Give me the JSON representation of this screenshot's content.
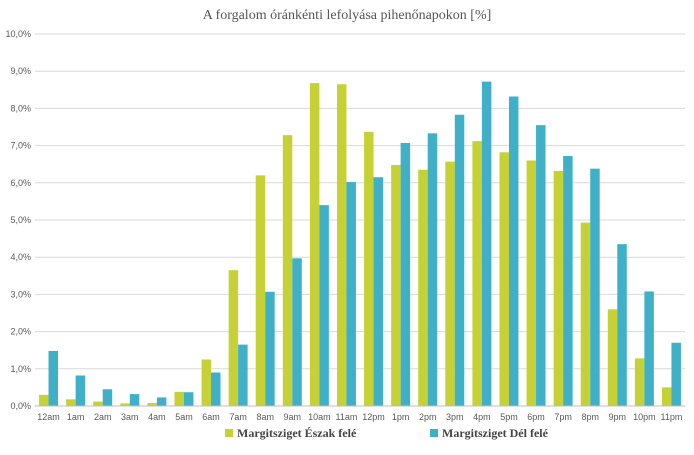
{
  "chart_data": {
    "type": "bar",
    "title": "A forgalom óránkénti lefolyása pihenőnapokon [%]",
    "xlabel": "",
    "ylabel": "",
    "ylim": [
      0,
      10
    ],
    "ytick_values": [
      0,
      1,
      2,
      3,
      4,
      5,
      6,
      7,
      8,
      9,
      10
    ],
    "ytick_labels": [
      "0,0%",
      "1,0%",
      "2,0%",
      "3,0%",
      "4,0%",
      "5,0%",
      "6,0%",
      "7,0%",
      "8,0%",
      "9,0%",
      "10,0%"
    ],
    "grid": true,
    "legend_position": "bottom",
    "categories": [
      "12am",
      "1am",
      "2am",
      "3am",
      "4am",
      "5am",
      "6am",
      "7am",
      "8am",
      "9am",
      "10am",
      "11am",
      "12pm",
      "1pm",
      "2pm",
      "3pm",
      "4pm",
      "5pm",
      "6pm",
      "7pm",
      "8pm",
      "9pm",
      "10pm",
      "11pm"
    ],
    "series": [
      {
        "name": "Margitsziget Észak felé",
        "color": "#c5d135",
        "values": [
          0.3,
          0.18,
          0.12,
          0.07,
          0.08,
          0.38,
          1.25,
          3.65,
          6.2,
          7.28,
          8.68,
          8.65,
          7.37,
          6.48,
          6.35,
          6.57,
          7.12,
          6.82,
          6.6,
          6.32,
          4.93,
          2.6,
          1.28,
          0.5
        ]
      },
      {
        "name": "Margitsziget Dél felé",
        "color": "#3fb0c8",
        "values": [
          1.48,
          0.82,
          0.45,
          0.32,
          0.23,
          0.37,
          0.9,
          1.65,
          3.07,
          3.97,
          5.4,
          6.02,
          6.15,
          7.07,
          7.33,
          7.83,
          8.72,
          8.32,
          7.55,
          6.72,
          6.38,
          4.35,
          3.08,
          1.7
        ]
      }
    ]
  }
}
